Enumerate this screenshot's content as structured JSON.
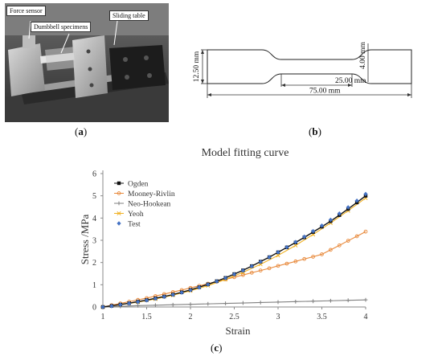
{
  "panel_a": {
    "label_open": "(",
    "label_letter": "a",
    "label_close": ")",
    "callouts": {
      "force_sensor": "Force sensor",
      "dumbbell": "Dumbbell specimens",
      "sliding_table": "Sliding table"
    }
  },
  "panel_b": {
    "label_open": "(",
    "label_letter": "b",
    "label_close": ")",
    "dimensions": {
      "overall_length": "75.00 mm",
      "gauge_length": "25.00 mm",
      "end_width": "12.50 mm",
      "gauge_width": "4.00 mm"
    }
  },
  "panel_c": {
    "label_open": "(",
    "label_letter": "c",
    "label_close": ")"
  },
  "chart_data": {
    "type": "line",
    "title": "Model fitting curve",
    "xlabel": "Strain",
    "ylabel": "Stress /MPa",
    "xlim": [
      1,
      4
    ],
    "ylim": [
      0,
      6
    ],
    "xticks": [
      "1",
      "1.5",
      "2",
      "2.5",
      "3",
      "3.5",
      "4"
    ],
    "yticks": [
      "0",
      "1",
      "2",
      "3",
      "4",
      "5",
      "6"
    ],
    "grid": false,
    "legend_position": "top-left",
    "series": [
      {
        "name": "Ogden",
        "color": "#111111",
        "marker": "square",
        "x": [
          1,
          1.1,
          1.2,
          1.3,
          1.4,
          1.5,
          1.6,
          1.7,
          1.8,
          1.9,
          2,
          2.1,
          2.2,
          2.3,
          2.4,
          2.5,
          2.6,
          2.7,
          2.8,
          2.9,
          3,
          3.1,
          3.2,
          3.3,
          3.4,
          3.5,
          3.6,
          3.7,
          3.8,
          3.9,
          4
        ],
        "y": [
          0,
          0.05,
          0.11,
          0.17,
          0.24,
          0.31,
          0.39,
          0.47,
          0.56,
          0.66,
          0.77,
          0.89,
          1.02,
          1.16,
          1.31,
          1.48,
          1.65,
          1.84,
          2.04,
          2.24,
          2.46,
          2.68,
          2.9,
          3.13,
          3.37,
          3.61,
          3.86,
          4.13,
          4.41,
          4.7,
          5.0
        ]
      },
      {
        "name": "Mooney-Rivlin",
        "color": "#e8893b",
        "marker": "circle",
        "x": [
          1,
          1.1,
          1.2,
          1.3,
          1.4,
          1.5,
          1.6,
          1.7,
          1.8,
          1.9,
          2,
          2.1,
          2.2,
          2.3,
          2.4,
          2.5,
          2.6,
          2.7,
          2.8,
          2.9,
          3,
          3.1,
          3.2,
          3.3,
          3.4,
          3.5,
          3.6,
          3.7,
          3.8,
          3.9,
          4
        ],
        "y": [
          0,
          0.08,
          0.16,
          0.24,
          0.32,
          0.4,
          0.49,
          0.58,
          0.67,
          0.76,
          0.86,
          0.95,
          1.05,
          1.14,
          1.24,
          1.34,
          1.44,
          1.54,
          1.64,
          1.74,
          1.85,
          1.95,
          2.05,
          2.16,
          2.26,
          2.37,
          2.57,
          2.77,
          2.98,
          3.18,
          3.39
        ]
      },
      {
        "name": "Neo-Hookean",
        "color": "#808080",
        "marker": "plus",
        "x": [
          1,
          1.2,
          1.4,
          1.6,
          1.8,
          2,
          2.2,
          2.4,
          2.6,
          2.8,
          3,
          3.2,
          3.4,
          3.6,
          3.8,
          4
        ],
        "y": [
          0,
          0.03,
          0.06,
          0.08,
          0.1,
          0.12,
          0.14,
          0.16,
          0.18,
          0.2,
          0.22,
          0.24,
          0.26,
          0.28,
          0.3,
          0.32
        ]
      },
      {
        "name": "Yeoh",
        "color": "#f0b020",
        "marker": "cross",
        "x": [
          1,
          1.2,
          1.4,
          1.6,
          1.8,
          2,
          2.2,
          2.4,
          2.6,
          2.8,
          3,
          3.2,
          3.4,
          3.6,
          3.8,
          4
        ],
        "y": [
          0,
          0.1,
          0.22,
          0.36,
          0.53,
          0.73,
          0.96,
          1.24,
          1.56,
          1.92,
          2.32,
          2.77,
          3.26,
          3.78,
          4.33,
          4.9
        ]
      },
      {
        "name": "Test",
        "color": "#4472c4",
        "marker": "diamond",
        "x": [
          1,
          1.1,
          1.2,
          1.3,
          1.4,
          1.5,
          1.6,
          1.7,
          1.8,
          1.9,
          2,
          2.1,
          2.2,
          2.3,
          2.4,
          2.5,
          2.6,
          2.7,
          2.8,
          2.9,
          3,
          3.1,
          3.2,
          3.3,
          3.4,
          3.5,
          3.6,
          3.7,
          3.8,
          3.9,
          4
        ],
        "y": [
          0,
          0.04,
          0.1,
          0.16,
          0.23,
          0.3,
          0.38,
          0.46,
          0.55,
          0.65,
          0.76,
          0.88,
          1.01,
          1.15,
          1.3,
          1.47,
          1.64,
          1.83,
          2.03,
          2.24,
          2.46,
          2.69,
          2.92,
          3.16,
          3.41,
          3.66,
          3.92,
          4.2,
          4.48,
          4.78,
          5.08
        ]
      }
    ]
  }
}
